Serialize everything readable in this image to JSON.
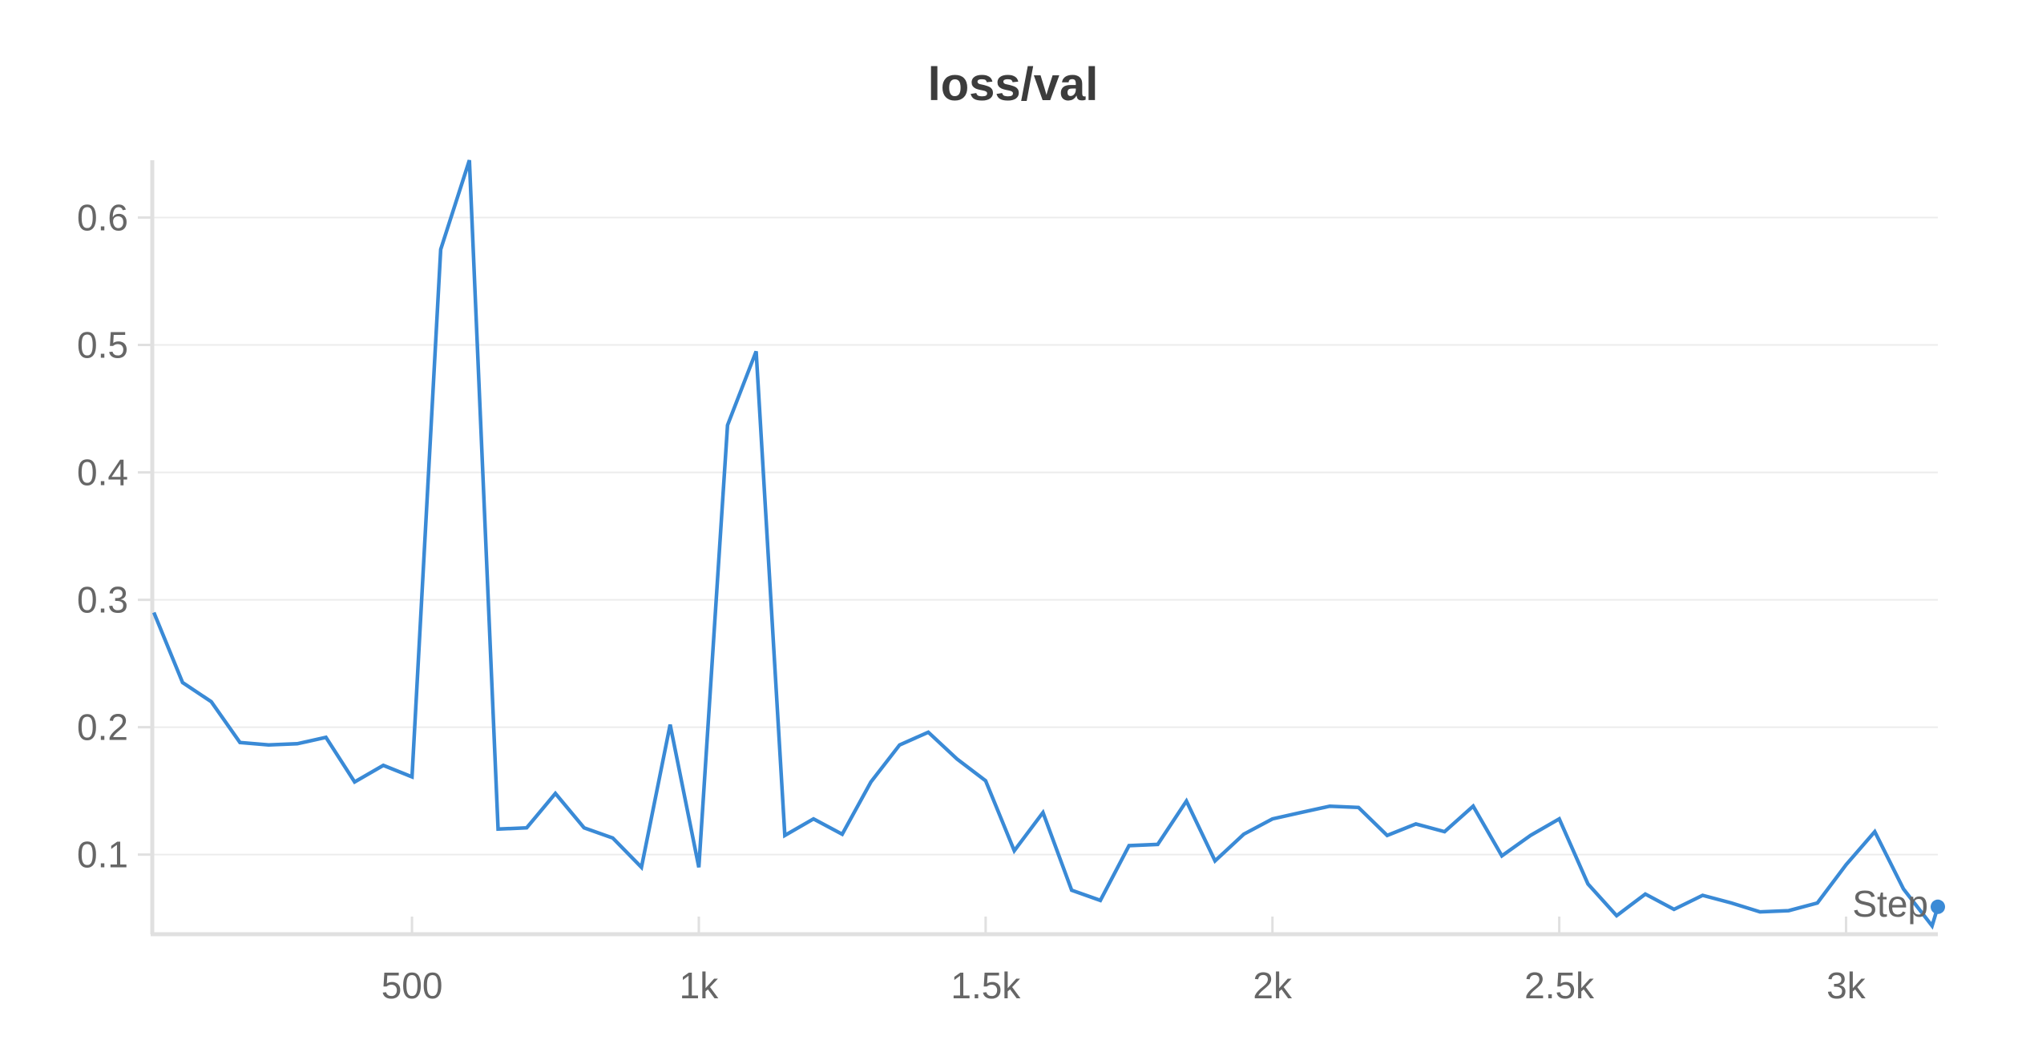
{
  "chart_data": {
    "type": "line",
    "title": "loss/val",
    "xlabel": "Step",
    "ylabel": "",
    "xlim": [
      50,
      3160
    ],
    "ylim": [
      0.04,
      0.645
    ],
    "x_ticks": [
      500,
      1000,
      1500,
      2000,
      2500,
      3000
    ],
    "x_tick_labels": [
      "500",
      "1k",
      "1.5k",
      "2k",
      "2.5k",
      "3k"
    ],
    "y_ticks": [
      0.1,
      0.2,
      0.3,
      0.4,
      0.5,
      0.6
    ],
    "y_tick_labels": [
      "0.1",
      "0.2",
      "0.3",
      "0.4",
      "0.5",
      "0.6"
    ],
    "grid": true,
    "line_color": "#3a8ad6",
    "series": [
      {
        "x": [
          50,
          100,
          150,
          200,
          250,
          300,
          350,
          400,
          450,
          500,
          550,
          600,
          650,
          700,
          750,
          800,
          850,
          900,
          950,
          1000,
          1050,
          1100,
          1150,
          1200,
          1250,
          1300,
          1350,
          1400,
          1450,
          1500,
          1550,
          1600,
          1650,
          1700,
          1750,
          1800,
          1850,
          1900,
          1950,
          2000,
          2050,
          2100,
          2150,
          2200,
          2250,
          2300,
          2350,
          2400,
          2450,
          2500,
          2550,
          2600,
          2650,
          2700,
          2750,
          2800,
          2850,
          2900,
          2950,
          3000,
          3050,
          3100,
          3150,
          3160
        ],
        "y": [
          0.29,
          0.235,
          0.22,
          0.188,
          0.186,
          0.187,
          0.192,
          0.157,
          0.17,
          0.161,
          0.575,
          0.645,
          0.12,
          0.121,
          0.148,
          0.121,
          0.113,
          0.09,
          0.202,
          0.09,
          0.437,
          0.495,
          0.115,
          0.128,
          0.116,
          0.157,
          0.186,
          0.196,
          0.175,
          0.158,
          0.103,
          0.133,
          0.072,
          0.064,
          0.107,
          0.108,
          0.142,
          0.095,
          0.116,
          0.128,
          0.133,
          0.138,
          0.137,
          0.115,
          0.124,
          0.118,
          0.138,
          0.099,
          0.115,
          0.128,
          0.077,
          0.052,
          0.069,
          0.057,
          0.068,
          0.062,
          0.055,
          0.056,
          0.062,
          0.092,
          0.118,
          0.073,
          0.044,
          0.059
        ]
      }
    ]
  }
}
